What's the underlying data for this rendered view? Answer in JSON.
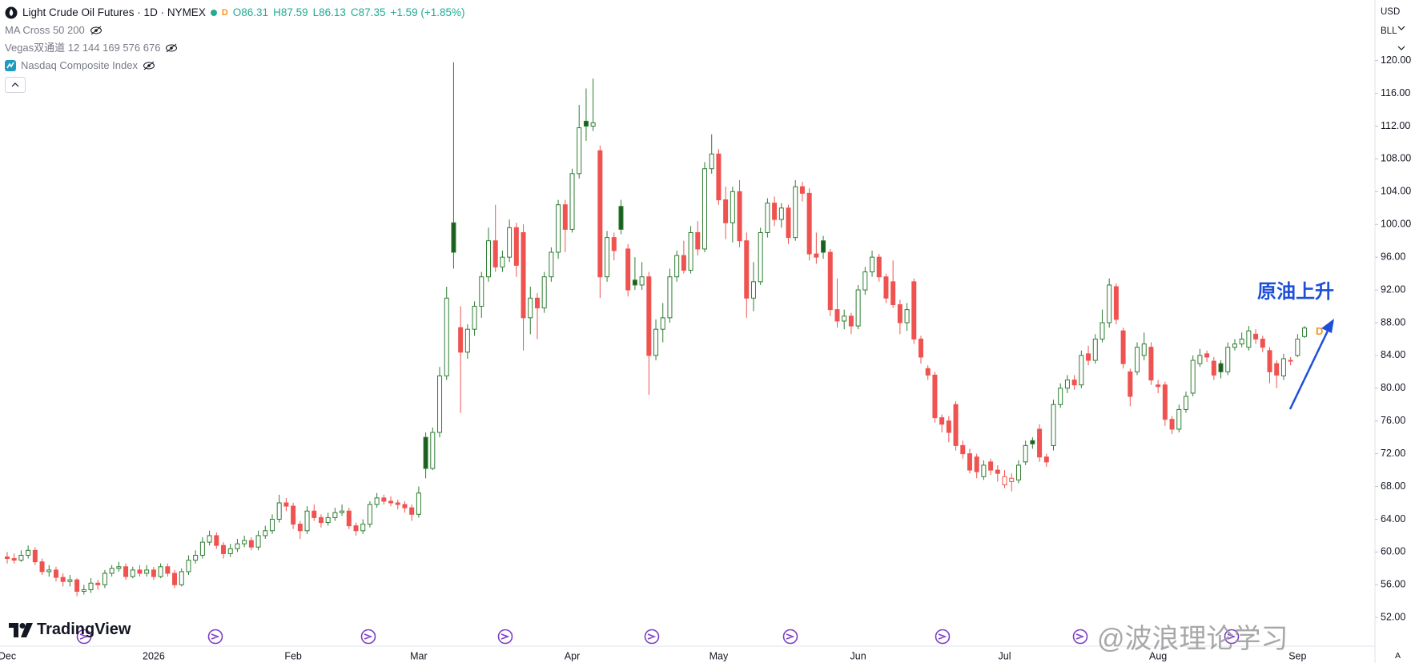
{
  "header": {
    "symbol": "Light Crude Oil Futures · 1D · NYMEX",
    "interval_badge": "D",
    "open": "O86.31",
    "high": "H87.59",
    "low": "L86.13",
    "close": "C87.35",
    "change": "+1.59 (+1.85%)"
  },
  "indicators": [
    "MA Cross 50 200",
    "Vegas双通道 12 144 169 576 676",
    "Nasdaq Composite Index"
  ],
  "price_axis": {
    "currency": "USD",
    "unit": "BLL",
    "scale_mode": "A"
  },
  "brand": "TradingView",
  "watermark": "@波浪理论学习",
  "chart_data": {
    "type": "candlestick",
    "categories": [
      "Dec",
      null,
      null,
      null,
      null,
      null,
      null,
      null,
      null,
      null,
      null,
      null,
      null,
      null,
      null,
      null,
      null,
      null,
      null,
      null,
      null,
      "2026",
      null,
      null,
      null,
      null,
      null,
      null,
      null,
      null,
      null,
      null,
      null,
      null,
      null,
      null,
      null,
      null,
      null,
      null,
      null,
      "Feb",
      null,
      null,
      null,
      null,
      null,
      null,
      null,
      null,
      null,
      null,
      null,
      null,
      null,
      null,
      null,
      null,
      null,
      "Mar",
      null,
      null,
      null,
      null,
      null,
      null,
      null,
      null,
      null,
      null,
      null,
      null,
      null,
      null,
      null,
      null,
      null,
      null,
      null,
      null,
      null,
      "Apr",
      null,
      null,
      null,
      null,
      null,
      null,
      null,
      null,
      null,
      null,
      null,
      null,
      null,
      null,
      null,
      null,
      null,
      null,
      null,
      null,
      "May",
      null,
      null,
      null,
      null,
      null,
      null,
      null,
      null,
      null,
      null,
      null,
      null,
      null,
      null,
      null,
      null,
      null,
      null,
      null,
      "Jun",
      null,
      null,
      null,
      null,
      null,
      null,
      null,
      null,
      null,
      null,
      null,
      null,
      null,
      null,
      null,
      null,
      null,
      null,
      null,
      null,
      "Jul",
      null,
      null,
      null,
      null,
      null,
      null,
      null,
      null,
      null,
      null,
      null,
      null,
      null,
      null,
      null,
      null,
      null,
      null,
      null,
      null,
      null,
      "Aug",
      null,
      null,
      null,
      null,
      null,
      null,
      null,
      null,
      null,
      null,
      null,
      null,
      null,
      null,
      null,
      null,
      null,
      null,
      null,
      "Sep",
      null
    ],
    "open": [
      59.4,
      59.2,
      59.0,
      59.6,
      60.2,
      58.8,
      57.6,
      57.8,
      56.9,
      56.4,
      56.6,
      55.2,
      55.4,
      56.2,
      56.0,
      57.4,
      58.0,
      58.2,
      57.0,
      57.8,
      57.4,
      57.8,
      57.0,
      58.2,
      57.4,
      56.0,
      57.6,
      59.0,
      59.6,
      61.2,
      62.0,
      60.8,
      59.8,
      60.4,
      61.0,
      61.4,
      60.6,
      62.0,
      62.6,
      64.0,
      66.0,
      65.6,
      63.4,
      62.6,
      65.0,
      64.2,
      63.6,
      64.2,
      64.8,
      65.0,
      63.2,
      62.6,
      63.4,
      65.8,
      66.6,
      66.2,
      66.0,
      65.8,
      65.4,
      64.6,
      74.0,
      70.2,
      74.6,
      81.5,
      100.2,
      87.4,
      84.4,
      87.2,
      90.0,
      93.6,
      98.0,
      94.8,
      96.0,
      99.6,
      99.0,
      88.6,
      91.0,
      89.8,
      93.6,
      96.6,
      102.4,
      99.4,
      106.2,
      112.6,
      112.0,
      109.0,
      93.6,
      98.4,
      102.2,
      97.0,
      93.2,
      92.6,
      93.6,
      84.0,
      87.2,
      88.6,
      93.6,
      96.2,
      94.4,
      99.0,
      97.0,
      106.8,
      108.6,
      103.0,
      100.2,
      104.0,
      98.0,
      91.0,
      93.0,
      99.0,
      102.6,
      100.6,
      102.0,
      98.4,
      104.6,
      103.8,
      96.4,
      98.0,
      96.6,
      89.6,
      88.2,
      88.8,
      87.6,
      92.0,
      94.2,
      96.0,
      93.6,
      93.0,
      90.2,
      88.0,
      93.0,
      86.0,
      82.4,
      81.6,
      76.4,
      76.0,
      78.0,
      73.0,
      72.0,
      71.6,
      69.2,
      71.0,
      70.0,
      68.2,
      68.6,
      68.8,
      71.0,
      73.6,
      75.0,
      71.6,
      73.0,
      78.0,
      80.0,
      81.0,
      80.4,
      84.2,
      83.4,
      86.0,
      88.0,
      92.4,
      87.0,
      82.0,
      82.0,
      84.0,
      85.0,
      80.4,
      80.4,
      76.2,
      75.0,
      77.4,
      79.4,
      83.0,
      84.2,
      83.3,
      83.0,
      82.0,
      85.0,
      85.4,
      85.0,
      86.6,
      86.0,
      84.6,
      83.0,
      81.5,
      83.4,
      84.0,
      86.31
    ],
    "high": [
      60.0,
      59.8,
      60.2,
      60.8,
      60.6,
      59.2,
      58.4,
      58.2,
      57.4,
      57.2,
      56.8,
      56.0,
      56.8,
      56.6,
      57.8,
      58.4,
      58.8,
      58.6,
      58.2,
      58.4,
      58.4,
      58.2,
      58.6,
      58.6,
      57.8,
      58.0,
      59.6,
      60.2,
      61.8,
      62.6,
      62.4,
      61.2,
      61.0,
      61.6,
      62.0,
      61.8,
      62.6,
      63.2,
      64.6,
      67.0,
      66.6,
      66.0,
      63.8,
      65.6,
      65.8,
      64.6,
      64.8,
      65.4,
      65.8,
      65.4,
      63.6,
      64.0,
      66.2,
      67.2,
      67.0,
      66.8,
      66.4,
      66.2,
      65.8,
      68.0,
      74.6,
      75.2,
      82.6,
      92.4,
      119.8,
      90.0,
      87.8,
      90.6,
      94.2,
      99.6,
      102.4,
      96.8,
      100.6,
      100.2,
      100.0,
      92.4,
      91.6,
      94.2,
      97.2,
      103.0,
      103.0,
      106.8,
      114.6,
      116.6,
      117.8,
      109.6,
      99.2,
      99.0,
      103.0,
      97.6,
      96.0,
      95.4,
      94.2,
      88.4,
      90.4,
      94.6,
      96.8,
      98.0,
      99.8,
      100.4,
      107.6,
      111.0,
      109.2,
      104.6,
      104.6,
      105.4,
      99.0,
      95.4,
      99.6,
      103.2,
      103.4,
      102.6,
      102.4,
      105.4,
      105.2,
      104.4,
      99.0,
      98.6,
      97.0,
      93.4,
      89.6,
      89.2,
      92.6,
      94.8,
      96.8,
      96.4,
      94.0,
      95.6,
      90.8,
      90.4,
      93.4,
      86.4,
      82.8,
      82.0,
      76.8,
      76.6,
      78.4,
      73.6,
      72.6,
      72.0,
      71.2,
      71.4,
      70.6,
      70.0,
      69.6,
      71.2,
      73.6,
      74.0,
      75.6,
      72.0,
      78.6,
      80.6,
      81.6,
      81.6,
      84.6,
      85.2,
      86.6,
      89.6,
      93.4,
      92.8,
      87.4,
      82.4,
      85.6,
      86.8,
      85.6,
      81.0,
      80.8,
      76.6,
      78.0,
      79.6,
      84.0,
      84.8,
      84.6,
      83.8,
      83.4,
      85.6,
      86.0,
      86.8,
      87.6,
      87.2,
      86.4,
      85.0,
      83.4,
      84.2,
      83.8,
      86.6,
      87.59
    ],
    "low": [
      58.6,
      58.6,
      58.8,
      59.2,
      58.4,
      57.2,
      57.0,
      56.4,
      55.8,
      55.8,
      54.6,
      54.8,
      55.0,
      55.4,
      55.6,
      57.0,
      57.6,
      56.6,
      56.8,
      57.0,
      57.0,
      56.6,
      56.8,
      57.0,
      55.6,
      55.8,
      57.2,
      58.6,
      59.2,
      60.8,
      60.4,
      59.2,
      59.4,
      60.0,
      60.6,
      60.2,
      60.2,
      61.6,
      62.2,
      63.6,
      65.0,
      62.8,
      61.6,
      62.2,
      63.8,
      63.0,
      63.2,
      63.8,
      64.4,
      62.8,
      62.0,
      62.2,
      63.0,
      65.4,
      65.8,
      65.6,
      65.2,
      64.8,
      63.8,
      64.2,
      69.0,
      70.0,
      74.0,
      81.0,
      94.6,
      77.0,
      83.6,
      86.4,
      88.6,
      93.0,
      94.2,
      94.2,
      95.4,
      93.6,
      84.6,
      86.6,
      86.0,
      89.2,
      93.0,
      95.8,
      96.6,
      99.0,
      105.6,
      110.2,
      111.4,
      91.0,
      93.0,
      95.6,
      98.8,
      91.2,
      92.0,
      92.0,
      79.2,
      83.4,
      85.6,
      88.0,
      93.0,
      94.0,
      94.0,
      96.2,
      96.6,
      106.2,
      102.4,
      98.2,
      97.8,
      97.2,
      88.6,
      89.4,
      92.6,
      98.4,
      99.8,
      99.6,
      97.6,
      98.0,
      102.8,
      95.6,
      95.2,
      95.8,
      88.8,
      87.4,
      87.2,
      86.6,
      87.2,
      91.4,
      93.6,
      93.0,
      90.4,
      89.8,
      86.6,
      87.0,
      85.4,
      83.0,
      81.0,
      75.8,
      74.6,
      73.4,
      72.4,
      71.4,
      69.6,
      69.0,
      68.8,
      69.4,
      68.6,
      67.8,
      67.4,
      68.4,
      70.6,
      72.6,
      71.0,
      70.4,
      72.4,
      77.6,
      79.4,
      79.8,
      80.0,
      82.8,
      83.0,
      85.6,
      87.4,
      87.8,
      82.4,
      77.8,
      81.6,
      83.4,
      80.4,
      79.4,
      75.4,
      74.4,
      74.6,
      77.0,
      79.0,
      82.6,
      83.2,
      81.0,
      81.2,
      81.6,
      84.6,
      85.0,
      84.6,
      85.4,
      84.4,
      80.6,
      80.0,
      81.0,
      82.8,
      83.8,
      86.13
    ],
    "close": [
      59.2,
      59.0,
      59.6,
      60.2,
      58.8,
      57.6,
      57.8,
      56.9,
      56.4,
      56.6,
      55.2,
      55.4,
      56.2,
      56.0,
      57.4,
      58.0,
      58.2,
      57.0,
      57.8,
      57.4,
      57.8,
      57.0,
      58.2,
      57.4,
      56.0,
      57.6,
      59.0,
      59.6,
      61.2,
      62.0,
      60.8,
      59.8,
      60.4,
      61.0,
      61.4,
      60.6,
      62.0,
      62.6,
      64.0,
      66.0,
      65.6,
      63.4,
      62.6,
      65.0,
      64.2,
      63.6,
      64.2,
      64.8,
      65.0,
      63.2,
      62.6,
      63.4,
      65.8,
      66.6,
      66.2,
      66.0,
      65.8,
      65.4,
      64.6,
      67.2,
      70.2,
      74.6,
      81.5,
      91.0,
      96.6,
      84.4,
      87.2,
      90.0,
      93.6,
      98.0,
      94.8,
      96.0,
      99.6,
      95.0,
      88.6,
      91.0,
      89.8,
      93.6,
      96.6,
      102.4,
      99.4,
      106.2,
      111.8,
      112.0,
      112.4,
      93.6,
      98.4,
      96.8,
      99.4,
      92.0,
      92.6,
      93.6,
      84.0,
      87.2,
      88.6,
      93.6,
      96.2,
      94.4,
      99.0,
      97.0,
      106.8,
      108.6,
      103.0,
      100.2,
      104.0,
      98.0,
      91.0,
      93.0,
      99.0,
      102.6,
      100.6,
      102.0,
      98.4,
      104.6,
      103.8,
      96.4,
      96.0,
      96.6,
      89.6,
      88.2,
      88.8,
      87.6,
      92.0,
      94.2,
      96.0,
      93.6,
      91.0,
      90.2,
      88.0,
      89.6,
      86.0,
      83.8,
      81.6,
      76.4,
      75.6,
      74.6,
      73.0,
      72.0,
      70.0,
      69.8,
      70.6,
      70.0,
      69.6,
      69.2,
      69.0,
      70.6,
      73.0,
      73.2,
      71.6,
      71.0,
      78.0,
      80.0,
      81.0,
      80.4,
      84.0,
      83.4,
      86.0,
      88.0,
      92.6,
      88.4,
      83.0,
      79.0,
      85.0,
      85.4,
      81.0,
      80.2,
      76.2,
      75.0,
      77.4,
      79.0,
      83.4,
      84.0,
      83.8,
      81.6,
      82.0,
      85.0,
      85.4,
      86.0,
      87.0,
      86.0,
      85.0,
      82.0,
      81.6,
      83.6,
      83.3,
      86.0,
      87.35
    ],
    "ylim": [
      48.5,
      127.4
    ],
    "yticks": [
      {
        "value": 52,
        "label": "52.00"
      },
      {
        "value": 56,
        "label": "56.00"
      },
      {
        "value": 60,
        "label": "60.00"
      },
      {
        "value": 64,
        "label": "64.00"
      },
      {
        "value": 68,
        "label": "68.00"
      },
      {
        "value": 72,
        "label": "72.00"
      },
      {
        "value": 76,
        "label": "76.00"
      },
      {
        "value": 80,
        "label": "80.00"
      },
      {
        "value": 84,
        "label": "84.00"
      },
      {
        "value": 88,
        "label": "88.00"
      },
      {
        "value": 92,
        "label": "92.00"
      },
      {
        "value": 96,
        "label": "96.00"
      },
      {
        "value": 100,
        "label": "100.00"
      },
      {
        "value": 104,
        "label": "104.00"
      },
      {
        "value": 108,
        "label": "108.00"
      },
      {
        "value": 112,
        "label": "112.00"
      },
      {
        "value": 116,
        "label": "116.00"
      },
      {
        "value": 120,
        "label": "120.00"
      }
    ],
    "up_color": "#2e7d32",
    "down_color": "#ef5350",
    "grid": false,
    "annotations": [
      {
        "text": "原油上升",
        "color": "#1e4fd8"
      },
      {
        "text": "D",
        "color": "#f7931a"
      }
    ]
  }
}
